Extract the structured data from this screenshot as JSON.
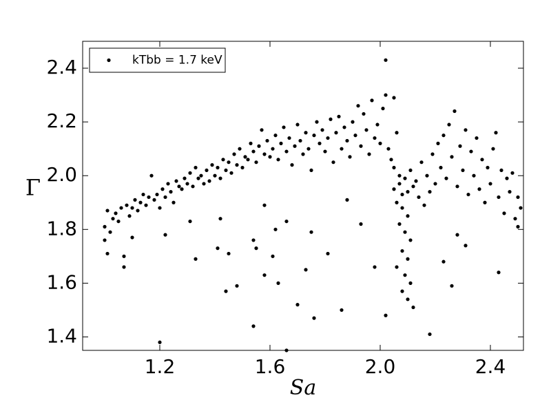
{
  "chart_data": {
    "type": "scatter",
    "xlabel": "Sa",
    "ylabel": "Γ",
    "xlim": [
      0.92,
      2.52
    ],
    "ylim": [
      1.35,
      2.5
    ],
    "xticks": [
      1.2,
      1.6,
      {
        "value": 2,
        "label": "2.0"
      },
      2.4
    ],
    "yticks": [
      1.4,
      1.6,
      1.8,
      {
        "value": 2,
        "label": "2.0"
      },
      2.2,
      2.4
    ],
    "legend": "upper left",
    "series": [
      {
        "name": "kTbb = 1.7 keV",
        "color": "#000000",
        "x": [
          1.0,
          1.0,
          1.01,
          1.01,
          1.02,
          1.03,
          1.04,
          1.05,
          1.06,
          1.07,
          1.08,
          1.09,
          1.1,
          1.11,
          1.12,
          1.13,
          1.14,
          1.15,
          1.16,
          1.17,
          1.18,
          1.19,
          1.2,
          1.21,
          1.22,
          1.23,
          1.24,
          1.25,
          1.26,
          1.27,
          1.28,
          1.29,
          1.3,
          1.31,
          1.32,
          1.33,
          1.34,
          1.35,
          1.36,
          1.37,
          1.38,
          1.39,
          1.4,
          1.41,
          1.42,
          1.43,
          1.44,
          1.45,
          1.46,
          1.47,
          1.48,
          1.49,
          1.5,
          1.51,
          1.52,
          1.53,
          1.54,
          1.55,
          1.56,
          1.57,
          1.58,
          1.59,
          1.6,
          1.61,
          1.62,
          1.63,
          1.64,
          1.65,
          1.66,
          1.67,
          1.68,
          1.69,
          1.7,
          1.71,
          1.72,
          1.73,
          1.74,
          1.75,
          1.76,
          1.77,
          1.78,
          1.79,
          1.8,
          1.81,
          1.82,
          1.83,
          1.84,
          1.85,
          1.86,
          1.87,
          1.88,
          1.89,
          1.9,
          1.91,
          1.92,
          1.93,
          1.94,
          1.95,
          1.96,
          1.97,
          1.98,
          1.99,
          2.0,
          2.01,
          2.02,
          2.03,
          2.04,
          2.05,
          2.06,
          2.07,
          2.05,
          2.06,
          2.07,
          2.08,
          2.09,
          2.1,
          2.11,
          2.12,
          2.08,
          2.1,
          2.07,
          2.09,
          2.11,
          2.08,
          2.1,
          2.06,
          2.09,
          2.11,
          2.08,
          2.1,
          2.12,
          2.05,
          2.13,
          2.14,
          2.15,
          2.16,
          2.17,
          2.18,
          2.19,
          2.2,
          2.21,
          2.22,
          2.23,
          2.24,
          2.25,
          2.26,
          2.27,
          2.28,
          2.29,
          2.3,
          2.31,
          2.32,
          2.33,
          2.34,
          2.35,
          2.36,
          2.37,
          2.38,
          2.39,
          2.4,
          2.41,
          2.42,
          2.43,
          2.44,
          2.45,
          2.46,
          2.47,
          2.48,
          2.49,
          2.5,
          2.51,
          2.5,
          2.43,
          2.28,
          2.26,
          2.31,
          2.23,
          2.18,
          2.02,
          2.02,
          1.2,
          1.54,
          1.66,
          1.76,
          1.86,
          1.7,
          1.63,
          1.58,
          1.44,
          1.48,
          1.45,
          1.41,
          1.33,
          1.54,
          1.55,
          1.61,
          1.66,
          1.73,
          1.75,
          1.81,
          1.88,
          1.93,
          1.98,
          1.58,
          1.62,
          1.42,
          1.31,
          1.22,
          1.1,
          1.07
        ],
        "values": [
          1.81,
          1.76,
          1.87,
          1.71,
          1.79,
          1.84,
          1.86,
          1.83,
          1.88,
          1.66,
          1.89,
          1.85,
          1.88,
          1.91,
          1.87,
          1.9,
          1.93,
          1.89,
          1.92,
          2.0,
          1.91,
          1.93,
          1.88,
          1.95,
          1.92,
          1.97,
          1.94,
          1.9,
          1.98,
          1.96,
          1.95,
          1.99,
          1.97,
          2.01,
          1.96,
          2.03,
          1.99,
          2.0,
          1.97,
          2.02,
          1.98,
          2.04,
          2.0,
          2.03,
          1.99,
          2.06,
          2.02,
          2.05,
          2.01,
          2.08,
          2.04,
          2.1,
          2.03,
          2.07,
          2.06,
          2.12,
          2.09,
          2.05,
          2.11,
          2.17,
          2.08,
          2.13,
          2.07,
          2.1,
          2.15,
          2.06,
          2.12,
          2.18,
          2.09,
          2.14,
          2.04,
          2.11,
          2.19,
          2.13,
          2.08,
          2.16,
          2.1,
          2.02,
          2.15,
          2.2,
          2.12,
          2.17,
          2.09,
          2.14,
          2.21,
          2.05,
          2.16,
          2.22,
          2.1,
          2.18,
          2.13,
          2.07,
          2.2,
          2.15,
          2.26,
          2.11,
          2.23,
          2.17,
          2.08,
          2.28,
          2.14,
          2.19,
          2.12,
          2.25,
          2.3,
          2.1,
          2.06,
          2.29,
          2.16,
          2.0,
          1.95,
          1.9,
          1.97,
          1.93,
          1.99,
          1.94,
          2.02,
          1.96,
          1.88,
          1.85,
          1.82,
          1.79,
          1.76,
          1.72,
          1.69,
          1.66,
          1.63,
          1.6,
          1.57,
          1.54,
          1.51,
          2.03,
          1.98,
          1.92,
          2.05,
          1.89,
          2.0,
          1.94,
          2.08,
          1.97,
          2.12,
          2.03,
          2.15,
          1.99,
          2.19,
          2.07,
          2.24,
          1.96,
          2.11,
          2.02,
          2.17,
          1.93,
          2.09,
          2.0,
          2.14,
          1.95,
          2.06,
          1.9,
          2.03,
          1.97,
          2.1,
          2.16,
          1.92,
          2.02,
          1.86,
          1.99,
          1.94,
          2.01,
          1.84,
          1.92,
          1.88,
          1.81,
          1.64,
          1.78,
          1.59,
          1.74,
          1.68,
          1.41,
          2.43,
          1.48,
          1.38,
          1.44,
          1.35,
          1.47,
          1.5,
          1.52,
          1.6,
          1.63,
          1.57,
          1.59,
          1.71,
          1.73,
          1.69,
          1.76,
          1.73,
          1.7,
          1.83,
          1.65,
          1.79,
          1.71,
          1.91,
          1.82,
          1.66,
          1.89,
          1.8,
          1.84,
          1.83,
          1.78,
          1.77,
          1.7
        ]
      }
    ]
  }
}
